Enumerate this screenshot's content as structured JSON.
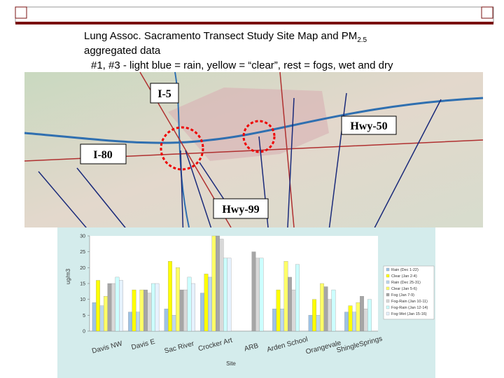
{
  "slide": {
    "title_main": "Lung Assoc. Sacramento Transect Study Site Map and PM",
    "title_sub": "2.5",
    "title_line2": "aggregated data",
    "subtitle": "#1, #3 - light blue = rain, yellow = “clear”, rest = fogs, wet and dry",
    "map_labels": [
      "I-5",
      "Hwy-50",
      "I-80",
      "Hwy-99"
    ]
  },
  "chart_data": {
    "type": "bar",
    "xlabel": "Site",
    "ylabel": "ug/m3",
    "categories": [
      "Davis NW",
      "Davis E",
      "Sac River",
      "Crocker Art",
      "ARB",
      "Arden School",
      "Orangevale",
      "ShingleSprings"
    ],
    "ylim": [
      0,
      30
    ],
    "yticks": [
      0,
      5,
      10,
      15,
      20,
      25,
      30
    ],
    "series": [
      {
        "name": "Rain (Dec 1-22)",
        "color": "#9dc3e6",
        "values": [
          9,
          6,
          7,
          12,
          null,
          7,
          5,
          6
        ]
      },
      {
        "name": "Clear (Jan 2-4)",
        "color": "#ffff00",
        "values": [
          16,
          13,
          22,
          18,
          null,
          13,
          10,
          8
        ]
      },
      {
        "name": "Rain (Dec 25-31)",
        "color": "#bdd7ee",
        "values": [
          8,
          6,
          5,
          17,
          null,
          7,
          5,
          6
        ]
      },
      {
        "name": "Clear (Jan 5-6)",
        "color": "#ffff66",
        "values": [
          11,
          13,
          20,
          30,
          null,
          22,
          15,
          9
        ]
      },
      {
        "name": "Fog (Jan 7-9)",
        "color": "#a6a6a6",
        "values": [
          15,
          13,
          13,
          30,
          25,
          17,
          14,
          11
        ]
      },
      {
        "name": "Fog-Rain (Jan 10-11)",
        "color": "#d9d9d9",
        "values": [
          15,
          12,
          13,
          29,
          23,
          13,
          10,
          7
        ]
      },
      {
        "name": "Fog-Rain (Jan 12-14)",
        "color": "#ccffff",
        "values": [
          17,
          15,
          17,
          23,
          23,
          21,
          13,
          10
        ]
      },
      {
        "name": "Fog-Wet (Jan 15-16)",
        "color": "#e6f2ff",
        "values": [
          16,
          15,
          15,
          23,
          null,
          null,
          null,
          null
        ]
      }
    ]
  }
}
